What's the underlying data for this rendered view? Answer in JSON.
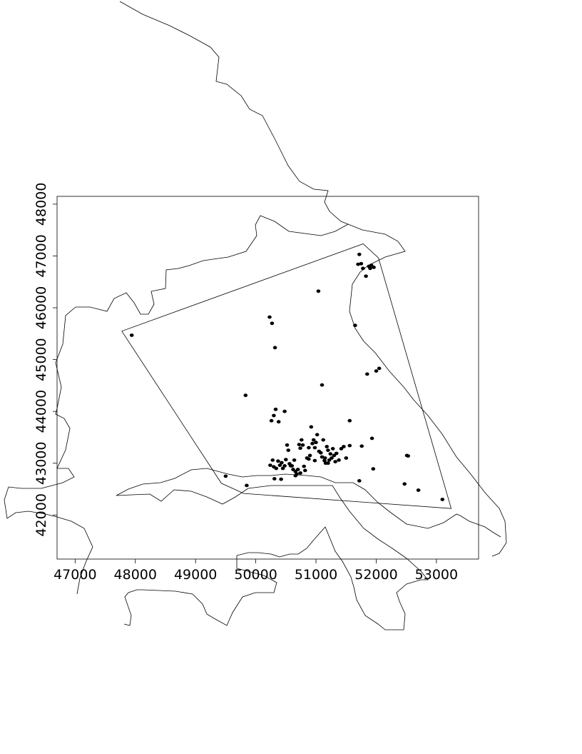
{
  "chart_data": {
    "type": "scatter",
    "title": "",
    "xlabel": "",
    "ylabel": "",
    "xlim": [
      46700,
      53700
    ],
    "ylim": [
      41150,
      48150
    ],
    "x_ticks": [
      47000,
      48000,
      49000,
      50000,
      51000,
      52000,
      53000
    ],
    "y_ticks": [
      42000,
      43000,
      44000,
      45000,
      46000,
      47000,
      48000
    ],
    "x_tick_labels": [
      "47000",
      "48000",
      "49000",
      "50000",
      "51000",
      "52000",
      "53000"
    ],
    "y_tick_labels": [
      "42000",
      "43000",
      "44000",
      "45000",
      "46000",
      "47000",
      "48000"
    ],
    "grid": false,
    "legend": "none",
    "point_color": "#000000",
    "line_color": "#000000",
    "points": [
      [
        47940,
        45470
      ],
      [
        49500,
        42750
      ],
      [
        49850,
        42570
      ],
      [
        50230,
        45820
      ],
      [
        50270,
        45700
      ],
      [
        50320,
        45230
      ],
      [
        49830,
        44310
      ],
      [
        50260,
        43820
      ],
      [
        50300,
        43920
      ],
      [
        50330,
        44040
      ],
      [
        50380,
        43800
      ],
      [
        50480,
        44000
      ],
      [
        51040,
        46320
      ],
      [
        51100,
        44510
      ],
      [
        51650,
        45660
      ],
      [
        51720,
        47030
      ],
      [
        51700,
        46840
      ],
      [
        51750,
        46850
      ],
      [
        51780,
        46760
      ],
      [
        51830,
        46610
      ],
      [
        51880,
        46800
      ],
      [
        51900,
        46760
      ],
      [
        51920,
        46820
      ],
      [
        51960,
        46780
      ],
      [
        51850,
        44720
      ],
      [
        52000,
        44780
      ],
      [
        52050,
        44830
      ],
      [
        51930,
        43480
      ],
      [
        51760,
        43330
      ],
      [
        51560,
        43820
      ],
      [
        51560,
        43340
      ],
      [
        51950,
        42890
      ],
      [
        51720,
        42660
      ],
      [
        52470,
        42600
      ],
      [
        52510,
        43150
      ],
      [
        52530,
        43140
      ],
      [
        52700,
        42480
      ],
      [
        53100,
        42300
      ],
      [
        50240,
        42960
      ],
      [
        50280,
        43060
      ],
      [
        50300,
        42930
      ],
      [
        50340,
        42900
      ],
      [
        50370,
        43040
      ],
      [
        50400,
        42960
      ],
      [
        50430,
        43010
      ],
      [
        50450,
        42900
      ],
      [
        50480,
        42950
      ],
      [
        50500,
        43070
      ],
      [
        50520,
        43350
      ],
      [
        50540,
        43250
      ],
      [
        50560,
        42990
      ],
      [
        50600,
        42950
      ],
      [
        50640,
        43060
      ],
      [
        50660,
        42840
      ],
      [
        50680,
        42790
      ],
      [
        50700,
        42880
      ],
      [
        50720,
        43360
      ],
      [
        50740,
        43290
      ],
      [
        50760,
        43450
      ],
      [
        50780,
        43350
      ],
      [
        50800,
        42940
      ],
      [
        50820,
        42860
      ],
      [
        50850,
        43100
      ],
      [
        50880,
        43300
      ],
      [
        50900,
        43150
      ],
      [
        50920,
        43700
      ],
      [
        50940,
        43380
      ],
      [
        50960,
        43450
      ],
      [
        50980,
        43300
      ],
      [
        51000,
        43400
      ],
      [
        51020,
        43550
      ],
      [
        51050,
        43230
      ],
      [
        51080,
        43200
      ],
      [
        51100,
        43120
      ],
      [
        51120,
        43450
      ],
      [
        51140,
        43050
      ],
      [
        51160,
        43000
      ],
      [
        51180,
        43320
      ],
      [
        51200,
        43250
      ],
      [
        51220,
        43060
      ],
      [
        51240,
        43180
      ],
      [
        51260,
        43100
      ],
      [
        51280,
        43280
      ],
      [
        51300,
        43150
      ],
      [
        51320,
        43030
      ],
      [
        51340,
        43190
      ],
      [
        51380,
        43060
      ],
      [
        51420,
        43280
      ],
      [
        51460,
        43320
      ],
      [
        51500,
        43100
      ],
      [
        50310,
        42700
      ],
      [
        50420,
        42690
      ],
      [
        50660,
        42760
      ],
      [
        50740,
        42810
      ],
      [
        50580,
        42950
      ],
      [
        50620,
        42880
      ],
      [
        51200,
        43000
      ],
      [
        51150,
        43100
      ],
      [
        50980,
        43050
      ],
      [
        50880,
        43080
      ]
    ]
  }
}
